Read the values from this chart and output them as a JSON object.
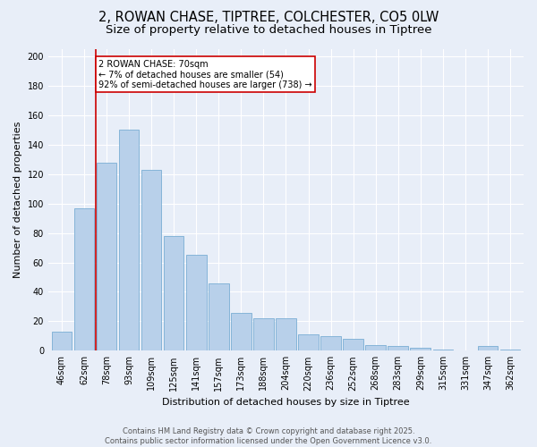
{
  "title1": "2, ROWAN CHASE, TIPTREE, COLCHESTER, CO5 0LW",
  "title2": "Size of property relative to detached houses in Tiptree",
  "xlabel": "Distribution of detached houses by size in Tiptree",
  "ylabel": "Number of detached properties",
  "categories": [
    "46sqm",
    "62sqm",
    "78sqm",
    "93sqm",
    "109sqm",
    "125sqm",
    "141sqm",
    "157sqm",
    "173sqm",
    "188sqm",
    "204sqm",
    "220sqm",
    "236sqm",
    "252sqm",
    "268sqm",
    "283sqm",
    "299sqm",
    "315sqm",
    "331sqm",
    "347sqm",
    "362sqm"
  ],
  "values": [
    13,
    97,
    128,
    150,
    123,
    78,
    65,
    46,
    26,
    22,
    22,
    11,
    10,
    8,
    4,
    3,
    2,
    1,
    0,
    3,
    1
  ],
  "bar_color": "#b8d0ea",
  "bar_edge_color": "#7aaed4",
  "annotation_text": "2 ROWAN CHASE: 70sqm\n← 7% of detached houses are smaller (54)\n92% of semi-detached houses are larger (738) →",
  "annotation_box_color": "#ffffff",
  "annotation_box_edge_color": "#cc0000",
  "vline_color": "#cc0000",
  "footer_text": "Contains HM Land Registry data © Crown copyright and database right 2025.\nContains public sector information licensed under the Open Government Licence v3.0.",
  "bg_color": "#e8eef8",
  "ylim": [
    0,
    205
  ],
  "yticks": [
    0,
    20,
    40,
    60,
    80,
    100,
    120,
    140,
    160,
    180,
    200
  ],
  "grid_color": "#ffffff",
  "title_fontsize": 10.5,
  "subtitle_fontsize": 9.5,
  "axis_fontsize": 8,
  "tick_fontsize": 7,
  "footer_fontsize": 6
}
